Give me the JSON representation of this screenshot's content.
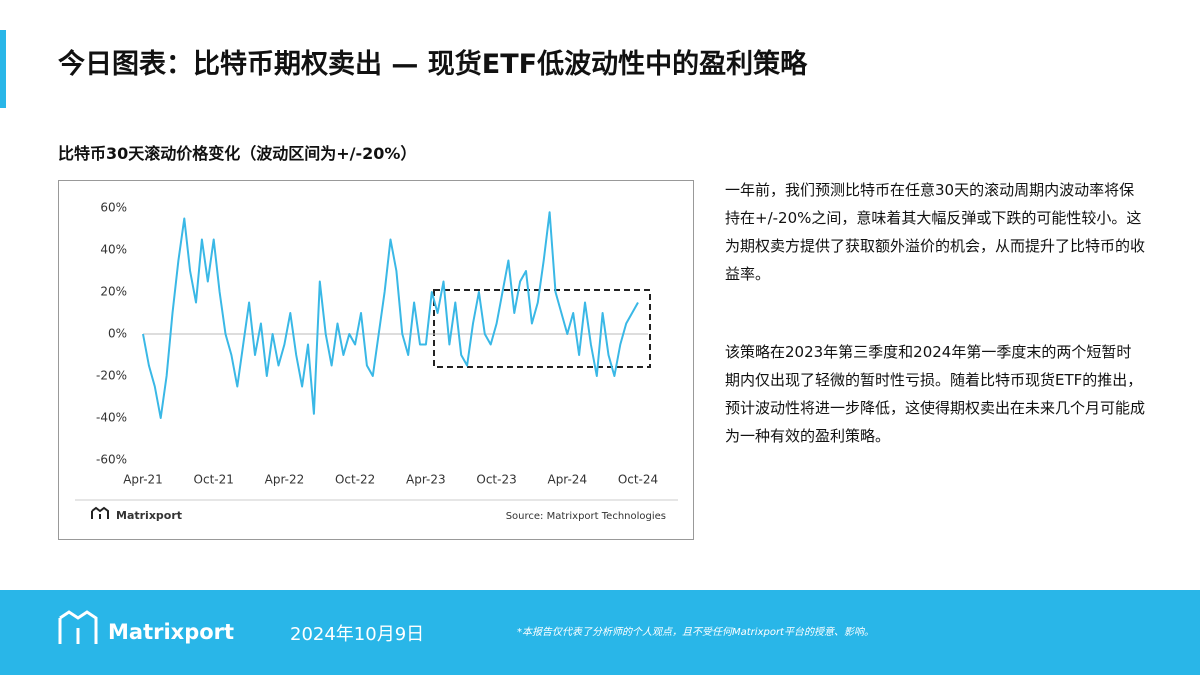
{
  "header": {
    "title": "今日图表：比特币期权卖出 — 现货ETF低波动性中的盈利策略"
  },
  "chart_data": {
    "type": "line",
    "title": "比特币30天滚动价格变化（波动区间为+/-20%）",
    "categories": [
      "Apr-21",
      null,
      null,
      null,
      null,
      null,
      null,
      null,
      null,
      null,
      null,
      null,
      "Oct-21",
      null,
      null,
      null,
      null,
      null,
      null,
      null,
      null,
      null,
      null,
      null,
      "Apr-22",
      null,
      null,
      null,
      null,
      null,
      null,
      null,
      null,
      null,
      null,
      null,
      "Oct-22",
      null,
      null,
      null,
      null,
      null,
      null,
      null,
      null,
      null,
      null,
      null,
      "Apr-23",
      null,
      null,
      null,
      null,
      null,
      null,
      null,
      null,
      null,
      null,
      null,
      "Oct-23",
      null,
      null,
      null,
      null,
      null,
      null,
      null,
      null,
      null,
      null,
      null,
      "Apr-24",
      null,
      null,
      null,
      null,
      null,
      null,
      null,
      null,
      null,
      null,
      null,
      "Oct-24"
    ],
    "values": [
      0,
      -15,
      -25,
      -40,
      -20,
      10,
      35,
      55,
      30,
      15,
      45,
      25,
      45,
      20,
      0,
      -10,
      -25,
      -5,
      15,
      -10,
      5,
      -20,
      0,
      -15,
      -5,
      10,
      -10,
      -25,
      -5,
      -38,
      25,
      0,
      -15,
      5,
      -10,
      0,
      -5,
      10,
      -15,
      -20,
      0,
      20,
      45,
      30,
      0,
      -10,
      15,
      -5,
      -5,
      20,
      10,
      25,
      -5,
      15,
      -10,
      -15,
      5,
      20,
      0,
      -5,
      5,
      20,
      35,
      10,
      25,
      30,
      5,
      15,
      35,
      58,
      20,
      10,
      0,
      10,
      -10,
      15,
      -5,
      -20,
      10,
      -10,
      -20,
      -5,
      5,
      10,
      15
    ],
    "color": "#3ab8e6",
    "ylim": [
      -60,
      60
    ],
    "yticks": [
      {
        "value": 60,
        "label": "60%"
      },
      {
        "value": 40,
        "label": "40%"
      },
      {
        "value": 20,
        "label": "20%"
      },
      {
        "value": 0,
        "label": "0%"
      },
      {
        "value": -20,
        "label": "-20%"
      },
      {
        "value": -40,
        "label": "-40%"
      },
      {
        "value": -60,
        "label": "-60%"
      }
    ],
    "logo": "Matrixport",
    "source": "Source: Matrixport Technologies"
  },
  "text": {
    "paragraphs": [
      "一年前，我们预测比特币在任意30天的滚动周期内波动率将保持在+/-20%之间，意味着其大幅反弹或下跌的可能性较小。这为期权卖方提供了获取额外溢价的机会，从而提升了比特币的收益率。",
      "该策略在2023年第三季度和2024年第一季度末的两个短暂时期内仅出现了轻微的暂时性亏损。随着比特币现货ETF的推出，预计波动性将进一步降低，这使得期权卖出在未来几个月可能成为一种有效的盈利策略。"
    ]
  },
  "footer": {
    "brand": "Matrixport",
    "date": "2024年10月9日",
    "disclaimer": "*本报告仅代表了分析师的个人观点，且不受任何Matrixport平台的授意、影响。"
  }
}
